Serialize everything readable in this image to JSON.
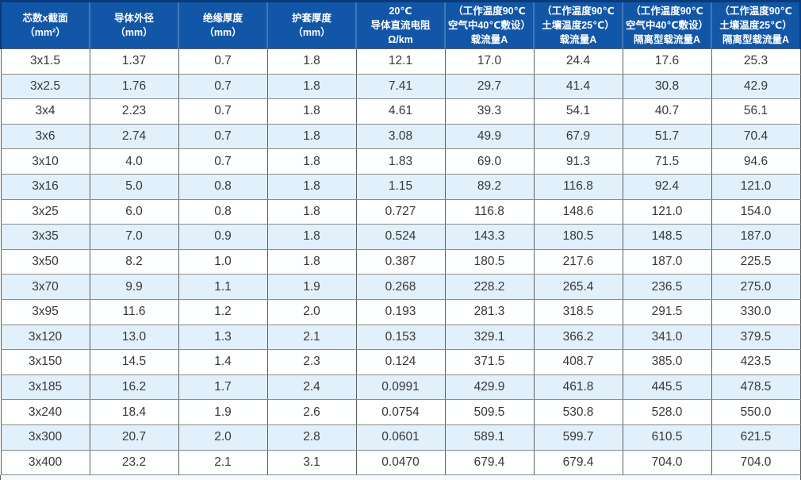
{
  "table": {
    "title_semantic": "cable-ampacity-spec-table",
    "columns": [
      {
        "lines": [
          "芯数x截面",
          "（mm²）"
        ]
      },
      {
        "lines": [
          "导体外径",
          "（mm）"
        ]
      },
      {
        "lines": [
          "绝缘厚度",
          "（mm）"
        ]
      },
      {
        "lines": [
          "护套厚度",
          "（mm）"
        ]
      },
      {
        "lines": [
          "20℃",
          "导体直流电阻",
          "Ω/km"
        ]
      },
      {
        "lines": [
          "（工作温度90℃",
          "空气中40℃敷设）",
          "载流量A"
        ]
      },
      {
        "lines": [
          "（工作温度90℃",
          "土壤温度25℃）",
          "载流量A"
        ]
      },
      {
        "lines": [
          "（工作温度90℃",
          "空气中40℃敷设）",
          "隔离型载流量A"
        ]
      },
      {
        "lines": [
          "（工作温度90℃",
          "土壤温度25℃）",
          "隔离型载流量A"
        ]
      }
    ],
    "rows": [
      [
        "3x1.5",
        "1.37",
        "0.7",
        "1.8",
        "12.1",
        "17.0",
        "24.4",
        "17.6",
        "25.3"
      ],
      [
        "3x2.5",
        "1.76",
        "0.7",
        "1.8",
        "7.41",
        "29.7",
        "41.4",
        "30.8",
        "42.9"
      ],
      [
        "3x4",
        "2.23",
        "0.7",
        "1.8",
        "4.61",
        "39.3",
        "54.1",
        "40.7",
        "56.1"
      ],
      [
        "3x6",
        "2.74",
        "0.7",
        "1.8",
        "3.08",
        "49.9",
        "67.9",
        "51.7",
        "70.4"
      ],
      [
        "3x10",
        "4.0",
        "0.7",
        "1.8",
        "1.83",
        "69.0",
        "91.3",
        "71.5",
        "94.6"
      ],
      [
        "3x16",
        "5.0",
        "0.8",
        "1.8",
        "1.15",
        "89.2",
        "116.8",
        "92.4",
        "121.0"
      ],
      [
        "3x25",
        "6.0",
        "0.8",
        "1.8",
        "0.727",
        "116.8",
        "148.6",
        "121.0",
        "154.0"
      ],
      [
        "3x35",
        "7.0",
        "0.9",
        "1.8",
        "0.524",
        "143.3",
        "180.5",
        "148.5",
        "187.0"
      ],
      [
        "3x50",
        "8.2",
        "1.0",
        "1.8",
        "0.387",
        "180.5",
        "217.6",
        "187.0",
        "225.5"
      ],
      [
        "3x70",
        "9.9",
        "1.1",
        "1.9",
        "0.268",
        "228.2",
        "265.4",
        "236.5",
        "275.0"
      ],
      [
        "3x95",
        "11.6",
        "1.2",
        "2.0",
        "0.193",
        "281.3",
        "318.5",
        "291.5",
        "330.0"
      ],
      [
        "3x120",
        "13.0",
        "1.3",
        "2.1",
        "0.153",
        "329.1",
        "366.2",
        "341.0",
        "379.5"
      ],
      [
        "3x150",
        "14.5",
        "1.4",
        "2.3",
        "0.124",
        "371.5",
        "408.7",
        "385.0",
        "423.5"
      ],
      [
        "3x185",
        "16.2",
        "1.7",
        "2.4",
        "0.0991",
        "429.9",
        "461.8",
        "445.5",
        "478.5"
      ],
      [
        "3x240",
        "18.4",
        "1.9",
        "2.6",
        "0.0754",
        "509.5",
        "530.8",
        "528.0",
        "550.0"
      ],
      [
        "3x300",
        "20.7",
        "2.0",
        "2.8",
        "0.0601",
        "589.1",
        "599.7",
        "610.5",
        "621.5"
      ],
      [
        "3x400",
        "23.2",
        "2.1",
        "3.1",
        "0.0470",
        "679.4",
        "679.4",
        "704.0",
        "704.0"
      ]
    ]
  },
  "colors": {
    "header_background": "#1257a7",
    "header_separator": "#3f77bd",
    "header_top_edge": "#0a3a78",
    "header_text": "#ffffff",
    "stripe_row": "#e1f0fa",
    "plain_row": "#fdfefe",
    "grid_line": "#5f5f5f",
    "body_text": "#383838"
  }
}
